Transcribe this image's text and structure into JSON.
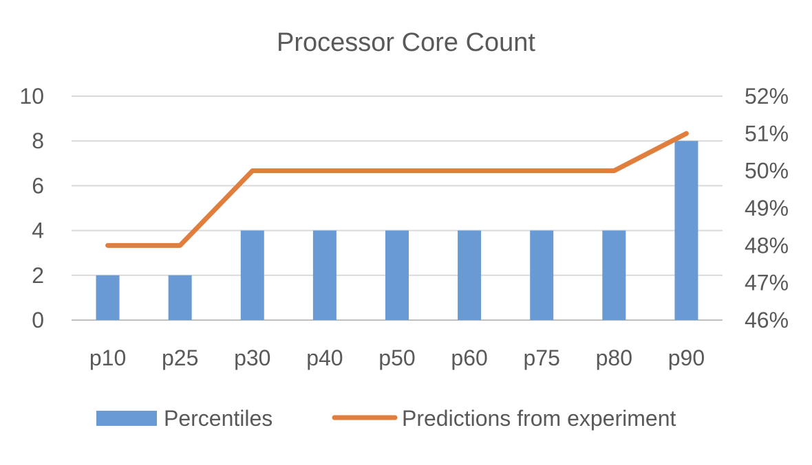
{
  "chart_data": {
    "type": "bar",
    "title": "Processor Core Count",
    "categories": [
      "p10",
      "p25",
      "p30",
      "p40",
      "p50",
      "p60",
      "p75",
      "p80",
      "p90"
    ],
    "series": [
      {
        "name": "Percentiles",
        "type": "bar",
        "axis": "left",
        "color": "#6A9AD3",
        "values": [
          2,
          2,
          4,
          4,
          4,
          4,
          4,
          4,
          8
        ]
      },
      {
        "name": "Predictions from experiment",
        "type": "line",
        "axis": "right",
        "color": "#E07E3E",
        "values": [
          48,
          48,
          50,
          50,
          50,
          50,
          50,
          50,
          51
        ]
      }
    ],
    "y_left": {
      "min": 0,
      "max": 10,
      "ticks": [
        0,
        2,
        4,
        6,
        8,
        10
      ]
    },
    "y_right": {
      "min": 46,
      "max": 52,
      "ticks": [
        46,
        47,
        48,
        49,
        50,
        51,
        52
      ],
      "unit": "%"
    },
    "grid": true,
    "legend": "bottom"
  }
}
